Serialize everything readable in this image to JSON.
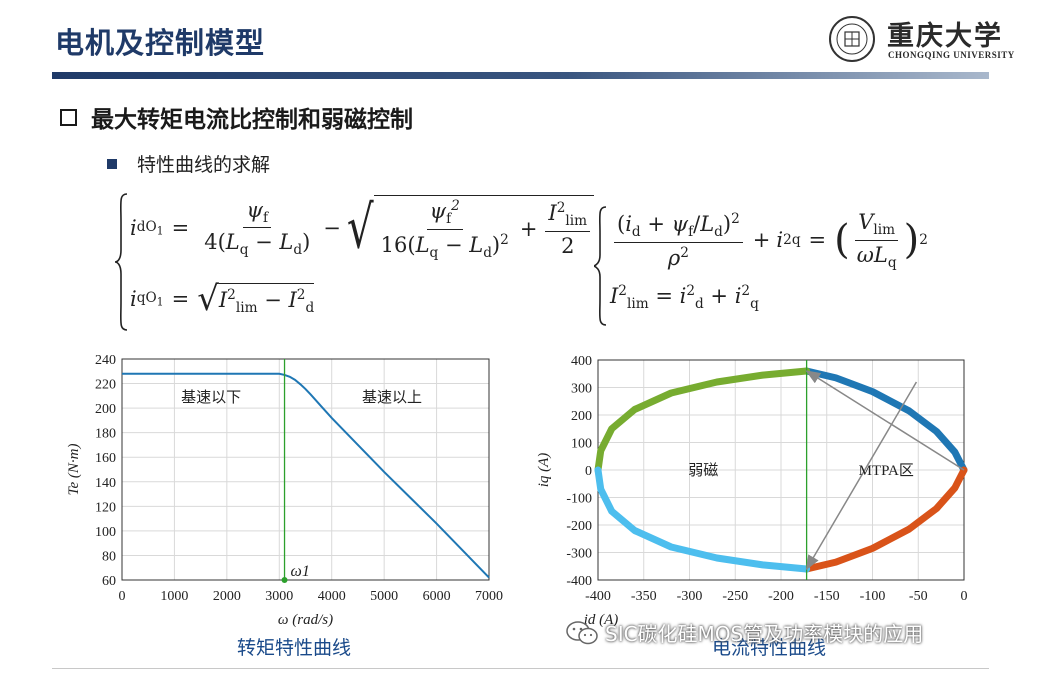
{
  "header": {
    "title": "电机及控制模型",
    "logo_name": "重庆大学",
    "logo_sub": "CHONGQING UNIVERSITY",
    "logo_seal_text": "重庆大学"
  },
  "section": {
    "title": "最大转矩电流比控制和弱磁控制",
    "bullet": "特性曲线的求解"
  },
  "equations": {
    "left_idO1": "i_dO1 = ψf / (4(Lq − Ld)) − √( ψf² / (16(Lq − Ld)²) + I_lim² / 2 )",
    "left_iqO1": "i_qO1 = √( I_lim² − I_d² )",
    "right_ellipse": "(i_d + ψf/Ld)² / ρ² + i_q² = (V_lim / (ωLq))²",
    "right_circle": "I_lim² = i_d² + i_q²"
  },
  "colors": {
    "title_blue": "#1f3a68",
    "caption_blue": "#1a4a8a",
    "torque_line": "#1f77b4",
    "omega_marker": "#2ca02c",
    "mtpa_upper": "#1f77b4",
    "mtpa_lower": "#d95319",
    "fw_upper": "#77ac30",
    "fw_lower": "#4dbeee"
  },
  "chart_data": [
    {
      "type": "line",
      "title": "",
      "xlabel": "ω (rad/s)",
      "ylabel": "Te (N·m)",
      "xlim": [
        0,
        7000
      ],
      "ylim": [
        60,
        240
      ],
      "xticks": [
        0,
        1000,
        2000,
        3000,
        4000,
        5000,
        6000,
        7000
      ],
      "yticks": [
        60,
        80,
        100,
        120,
        140,
        160,
        180,
        200,
        220,
        240
      ],
      "grid": true,
      "series": [
        {
          "x": [
            0,
            1000,
            2000,
            3000,
            3100,
            3200,
            3300,
            3400,
            3500,
            3600,
            3800,
            4000,
            4500,
            5000,
            5500,
            6000,
            6500,
            7000
          ],
          "y": [
            228,
            228,
            228,
            228,
            227,
            225.5,
            223,
            219.5,
            215.5,
            211,
            201.5,
            192,
            170,
            148,
            127,
            106,
            84,
            62
          ]
        }
      ],
      "vline_x": 3100,
      "marker": {
        "x": 3100,
        "y": 60,
        "label": "ω1"
      },
      "annotations": [
        {
          "text": "基速以下",
          "x": 1700,
          "y": 209
        },
        {
          "text": "基速以上",
          "x": 5150,
          "y": 209
        }
      ],
      "caption": "转矩特性曲线"
    },
    {
      "type": "scatter",
      "title": "",
      "xlabel": "id (A)",
      "ylabel": "iq (A)",
      "xlim": [
        -400,
        0
      ],
      "ylim": [
        -400,
        400
      ],
      "xticks": [
        -400,
        -350,
        -300,
        -250,
        -200,
        -150,
        -100,
        -50,
        0
      ],
      "yticks": [
        -400,
        -300,
        -200,
        -100,
        0,
        100,
        200,
        300,
        400
      ],
      "grid": true,
      "series": [
        {
          "id": "mtpa-upper",
          "x": [
            0,
            -10,
            -30,
            -60,
            -100,
            -140,
            -172
          ],
          "y": [
            0,
            65,
            140,
            215,
            285,
            335,
            360
          ]
        },
        {
          "id": "mtpa-lower",
          "x": [
            0,
            -10,
            -30,
            -60,
            -100,
            -140,
            -172
          ],
          "y": [
            0,
            -65,
            -140,
            -215,
            -285,
            -335,
            -360
          ]
        },
        {
          "id": "fw-upper",
          "x": [
            -172,
            -220,
            -270,
            -320,
            -360,
            -385,
            -397,
            -400
          ],
          "y": [
            360,
            345,
            320,
            280,
            220,
            150,
            70,
            0
          ]
        },
        {
          "id": "fw-lower",
          "x": [
            -172,
            -220,
            -270,
            -320,
            -360,
            -385,
            -397,
            -400
          ],
          "y": [
            -360,
            -345,
            -320,
            -280,
            -220,
            -150,
            -70,
            0
          ]
        }
      ],
      "vline_x": -172,
      "arrows": [
        {
          "from": [
            0,
            0
          ],
          "to": [
            -172,
            360
          ]
        },
        {
          "from": [
            -52,
            320
          ],
          "to": [
            -172,
            -360
          ]
        }
      ],
      "annotations": [
        {
          "text": "弱磁",
          "x": -285,
          "y": 0
        },
        {
          "text": "MTPA区",
          "x": -85,
          "y": 0
        }
      ],
      "caption": "电流特性曲线"
    }
  ],
  "watermark": "SIC碳化硅MOS管及功率模块的应用"
}
